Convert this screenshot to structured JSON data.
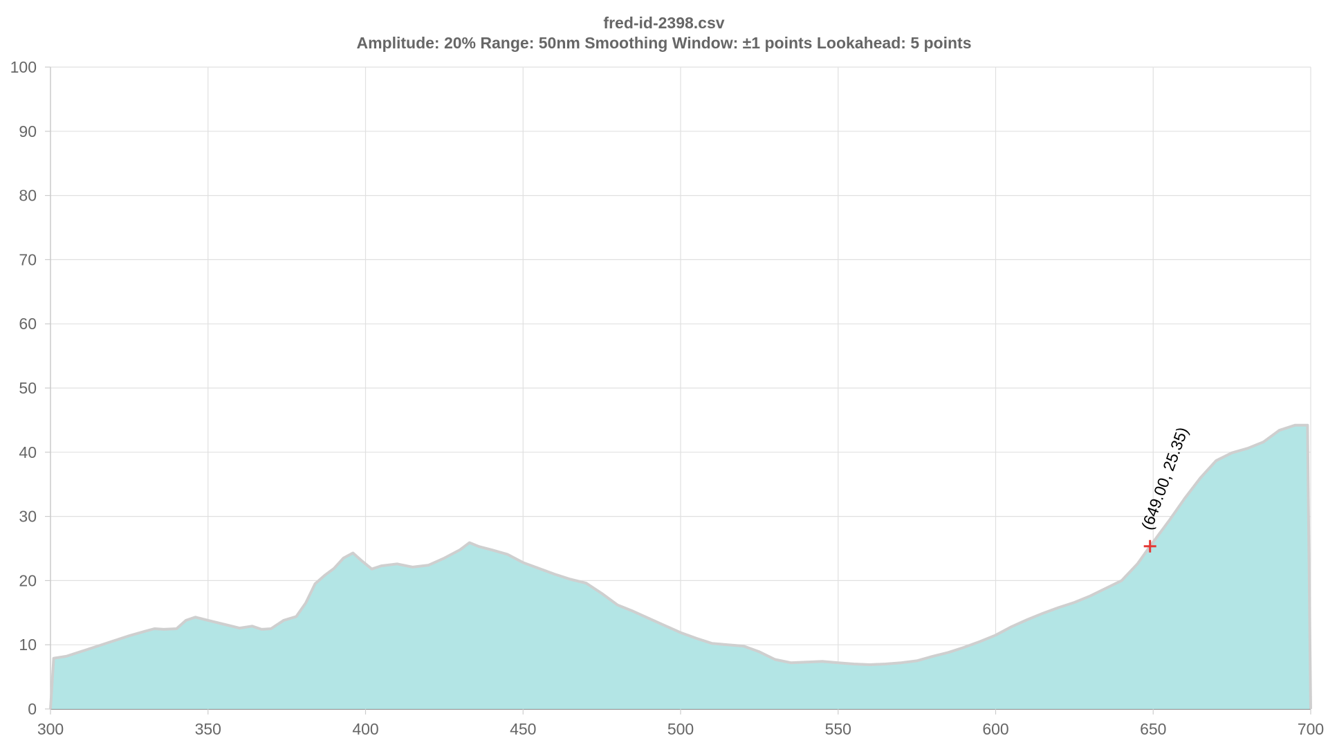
{
  "chart_data": {
    "type": "area",
    "title": "fred-id-2398.csv",
    "subtitle": "Amplitude: 20%   Range: 50nm   Smoothing Window: ±1 points   Lookahead: 5 points",
    "xlabel": "",
    "ylabel": "",
    "xlim": [
      300,
      700
    ],
    "ylim": [
      0,
      100
    ],
    "x_ticks": [
      300,
      350,
      400,
      450,
      500,
      550,
      600,
      650,
      700
    ],
    "y_ticks": [
      0,
      10,
      20,
      30,
      40,
      50,
      60,
      70,
      80,
      90,
      100
    ],
    "grid": true,
    "legend": "none",
    "fill_color": "#b3e5e5",
    "line_color": "#cfcfcf",
    "grid_color": "#e0e0e0",
    "axis_color": "#666666",
    "marker_color": "#e53935",
    "series": [
      {
        "x": [
          300,
          301,
          305,
          310,
          315,
          320,
          325,
          330,
          333,
          336,
          340,
          343,
          346,
          350,
          355,
          360,
          364,
          367,
          370,
          374,
          378,
          381,
          384,
          387,
          390,
          393,
          396,
          399,
          402,
          405,
          410,
          415,
          420,
          425,
          430,
          433,
          436,
          440,
          445,
          450,
          455,
          460,
          465,
          470,
          475,
          480,
          485,
          490,
          495,
          500,
          505,
          510,
          515,
          520,
          525,
          530,
          535,
          540,
          545,
          550,
          555,
          560,
          565,
          570,
          575,
          580,
          585,
          590,
          595,
          600,
          605,
          610,
          615,
          620,
          625,
          630,
          635,
          640,
          645,
          649,
          655,
          660,
          665,
          670,
          675,
          680,
          685,
          690,
          695,
          699,
          700
        ],
        "y": [
          0,
          7.9,
          8.2,
          9.0,
          9.8,
          10.6,
          11.4,
          12.1,
          12.5,
          12.4,
          12.5,
          13.8,
          14.3,
          13.8,
          13.2,
          12.6,
          12.9,
          12.4,
          12.5,
          13.8,
          14.4,
          16.5,
          19.5,
          20.8,
          21.9,
          23.5,
          24.3,
          23.0,
          21.8,
          22.3,
          22.6,
          22.1,
          22.4,
          23.5,
          24.8,
          25.9,
          25.3,
          24.8,
          24.1,
          22.8,
          21.9,
          21.0,
          20.2,
          19.6,
          18.0,
          16.2,
          15.2,
          14.1,
          13.0,
          11.9,
          11.0,
          10.2,
          10.0,
          9.8,
          8.9,
          7.7,
          7.2,
          7.3,
          7.4,
          7.2,
          7.0,
          6.9,
          7.0,
          7.2,
          7.5,
          8.2,
          8.8,
          9.6,
          10.5,
          11.5,
          12.8,
          13.9,
          14.9,
          15.8,
          16.6,
          17.6,
          18.8,
          20.0,
          22.6,
          25.35,
          29.3,
          32.8,
          36.0,
          38.7,
          39.9,
          40.6,
          41.6,
          43.4,
          44.2,
          44.2,
          0
        ]
      }
    ],
    "annotations": [
      {
        "x": 649.0,
        "y": 25.35,
        "label": "(649.00,  25.35)",
        "marker": "plus"
      }
    ]
  }
}
